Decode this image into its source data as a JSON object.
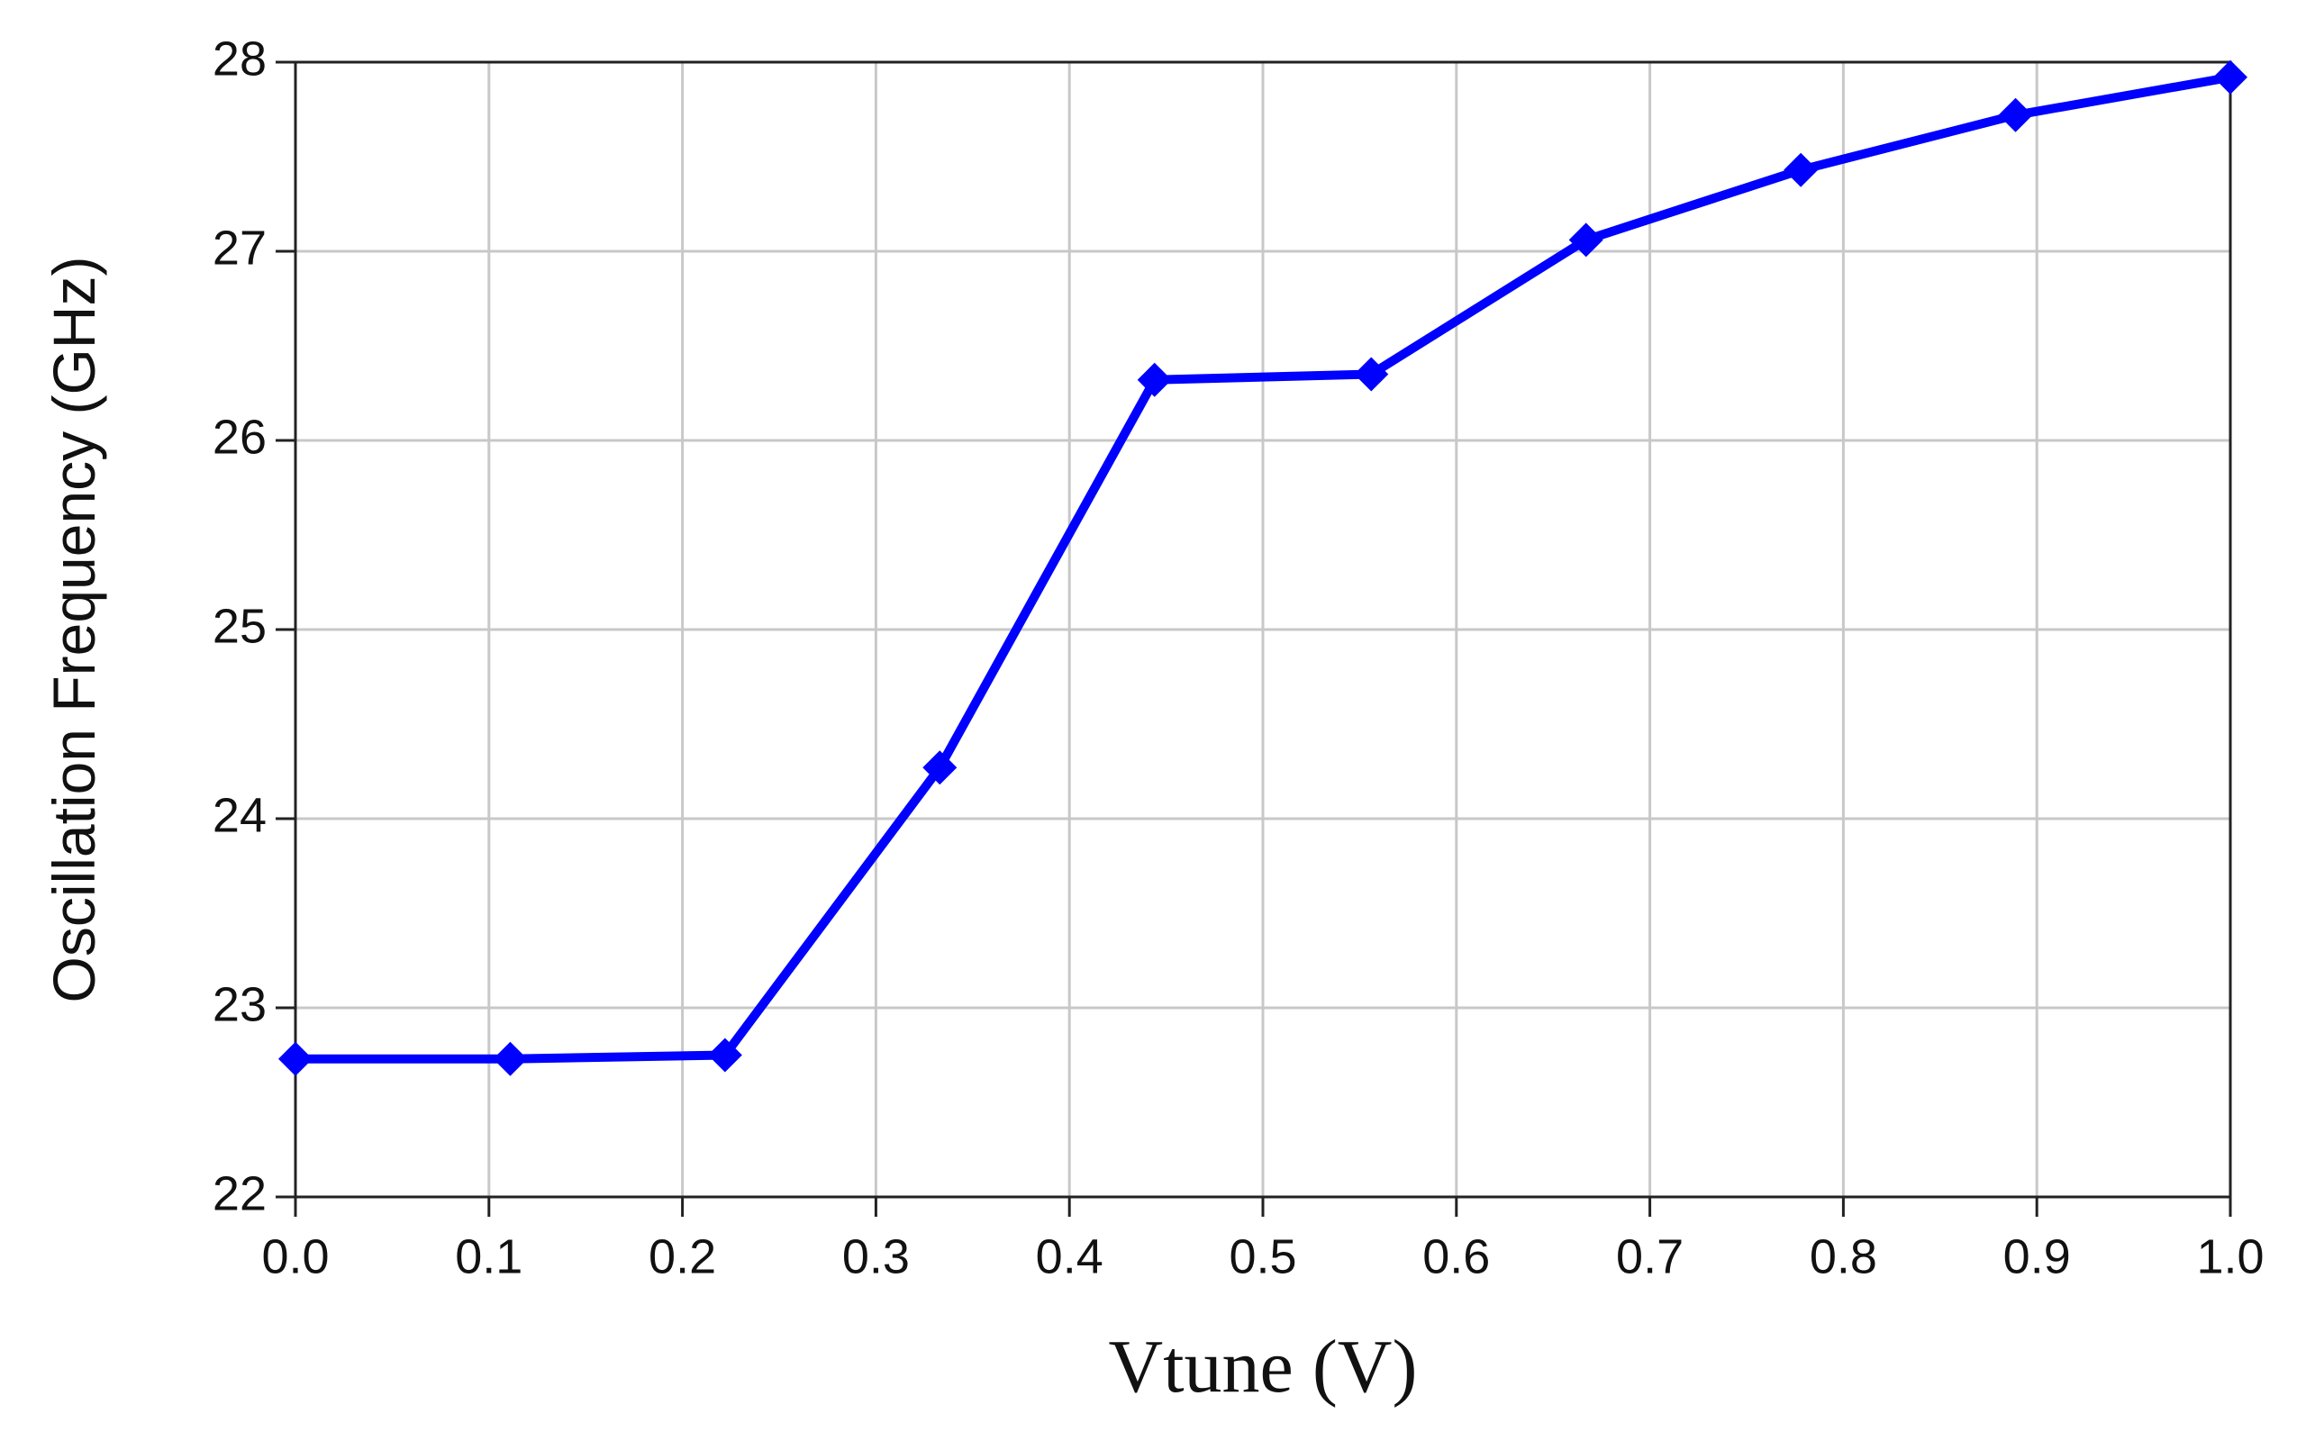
{
  "chart_data": {
    "type": "line",
    "x_label": "Vtune  (V)",
    "y_label": "Oscillation Frequency (GHz)",
    "x": [
      0,
      0.111,
      0.222,
      0.333,
      0.444,
      0.556,
      0.667,
      0.778,
      0.889,
      1.0
    ],
    "series": [
      {
        "name": "Oscillation Frequency",
        "color": "#0000ff",
        "values": [
          22.73,
          22.73,
          22.75,
          24.27,
          26.32,
          26.35,
          27.06,
          27.43,
          27.72,
          27.92
        ]
      }
    ],
    "xlim": [
      0,
      1.0
    ],
    "ylim": [
      22,
      28
    ],
    "xticks": [
      {
        "value": 0,
        "label": "0.0"
      },
      0.1,
      0.2,
      0.3,
      0.4,
      0.5,
      0.6,
      0.7,
      0.8,
      0.9,
      {
        "value": 1.0,
        "label": "1.0"
      }
    ],
    "yticks": [
      22,
      23,
      24,
      25,
      26,
      27,
      28
    ],
    "grid": true,
    "legend": false
  }
}
